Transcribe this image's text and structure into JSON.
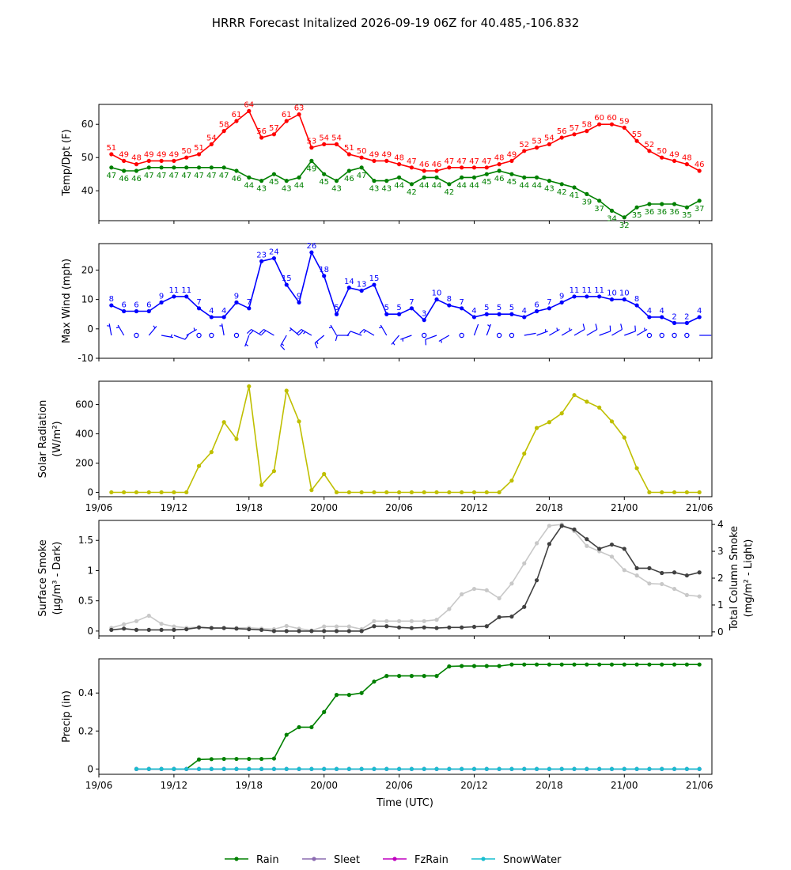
{
  "title": "HRRR Forecast Initalized 2026-09-19 06Z for 40.485,-106.832",
  "colors": {
    "temp": "#ff0000",
    "dewpoint": "#008000",
    "wind": "#0000ff",
    "solar": "#bfbf00",
    "smoke_surface": "#404040",
    "smoke_column": "#c8c8c8",
    "rain": "#008000",
    "sleet": "#8c6bb1",
    "fzrain": "#c000c0",
    "snowwater": "#17becf"
  },
  "time_axis": {
    "xlabel": "Time (UTC)",
    "ticks": [
      "19/06",
      "19/12",
      "19/18",
      "20/00",
      "20/06",
      "20/12",
      "20/18",
      "21/00",
      "21/06"
    ]
  },
  "legend": {
    "placement": "bottom-center",
    "items": [
      {
        "label": "Rain",
        "color_key": "rain"
      },
      {
        "label": "Sleet",
        "color_key": "sleet"
      },
      {
        "label": "FzRain",
        "color_key": "fzrain"
      },
      {
        "label": "SnowWater",
        "color_key": "snowwater"
      }
    ]
  },
  "chart_data": [
    {
      "type": "line",
      "ylabel": "Temp/Dpt (F)",
      "ylim": [
        31,
        66
      ],
      "yticks": [
        40,
        50,
        60
      ],
      "x_start_hour": 1,
      "series": [
        {
          "color_key": "temp",
          "label_pos": "above",
          "values": [
            51,
            49,
            48,
            49,
            49,
            49,
            50,
            51,
            54,
            58,
            61,
            64,
            56,
            57,
            61,
            63,
            53,
            54,
            54,
            51,
            50,
            49,
            49,
            48,
            47,
            46,
            46,
            47,
            47,
            47,
            47,
            48,
            49,
            52,
            53,
            54,
            56,
            57,
            58,
            60,
            60,
            59,
            55,
            52,
            50,
            49,
            48,
            46
          ]
        },
        {
          "color_key": "dewpoint",
          "label_pos": "below",
          "values": [
            47,
            46,
            46,
            47,
            47,
            47,
            47,
            47,
            47,
            47,
            46,
            44,
            43,
            45,
            43,
            44,
            49,
            45,
            43,
            46,
            47,
            43,
            43,
            44,
            42,
            44,
            44,
            42,
            44,
            44,
            45,
            46,
            45,
            44,
            44,
            43,
            42,
            41,
            39,
            37,
            34,
            32,
            35,
            36,
            36,
            36,
            35,
            37
          ]
        }
      ]
    },
    {
      "type": "line",
      "ylabel": "Max Wind (mph)",
      "ylim": [
        -10,
        29
      ],
      "yticks": [
        -10,
        0,
        10,
        20
      ],
      "x_start_hour": 1,
      "series": [
        {
          "color_key": "wind",
          "label_pos": "above",
          "values": [
            8,
            6,
            6,
            6,
            9,
            11,
            11,
            7,
            4,
            4,
            9,
            7,
            23,
            24,
            15,
            9,
            26,
            18,
            5,
            14,
            13,
            15,
            5,
            5,
            7,
            3,
            10,
            8,
            7,
            4,
            5,
            5,
            5,
            4,
            6,
            7,
            9,
            11,
            11,
            11,
            10,
            10,
            8,
            4,
            4,
            2,
            2,
            4
          ]
        }
      ],
      "wind_barbs": [
        {
          "dir": 350,
          "speed": 8
        },
        {
          "dir": 330,
          "speed": 6
        },
        {
          "calm": true
        },
        {
          "dir": 40,
          "speed": 6
        },
        {
          "dir": 100,
          "speed": 9
        },
        {
          "dir": 110,
          "speed": 11
        },
        {
          "dir": 60,
          "speed": 7
        },
        {
          "calm": true
        },
        {
          "calm": true
        },
        {
          "dir": 350,
          "speed": 9
        },
        {
          "calm": true
        },
        {
          "dir": 200,
          "speed": 7
        },
        {
          "dir": 300,
          "speed": 23
        },
        {
          "dir": 300,
          "speed": 24
        },
        {
          "dir": 210,
          "speed": 15
        },
        {
          "dir": 310,
          "speed": 9
        },
        {
          "dir": 300,
          "speed": 26
        },
        {
          "dir": 230,
          "speed": 18
        },
        {
          "dir": 330,
          "speed": 5
        },
        {
          "dir": 270,
          "speed": 14
        },
        {
          "dir": 290,
          "speed": 13
        },
        {
          "dir": 300,
          "speed": 15
        },
        {
          "dir": 330,
          "speed": 5
        },
        {
          "dir": 220,
          "speed": 5
        },
        {
          "dir": 250,
          "speed": 7
        },
        {
          "calm": true
        },
        {
          "dir": 250,
          "speed": 10
        },
        {
          "dir": 240,
          "speed": 8
        },
        {
          "calm": true
        },
        {
          "dir": 20,
          "speed": 4
        },
        {
          "dir": 20,
          "speed": 5
        },
        {
          "calm": true
        },
        {
          "calm": true
        },
        {
          "dir": 80,
          "speed": 4
        },
        {
          "dir": 70,
          "speed": 6
        },
        {
          "dir": 60,
          "speed": 7
        },
        {
          "dir": 60,
          "speed": 9
        },
        {
          "dir": 60,
          "speed": 11
        },
        {
          "dir": 60,
          "speed": 11
        },
        {
          "dir": 70,
          "speed": 11
        },
        {
          "dir": 60,
          "speed": 10
        },
        {
          "dir": 70,
          "speed": 10
        },
        {
          "dir": 60,
          "speed": 8
        },
        {
          "calm": true
        },
        {
          "calm": true
        },
        {
          "calm": true
        },
        {
          "calm": true
        },
        {
          "dir": 90,
          "speed": 4
        }
      ]
    },
    {
      "type": "line",
      "ylabel_lines": [
        "Solar Radiation",
        "(W/m²)"
      ],
      "ylim": [
        -30,
        760
      ],
      "yticks": [
        0,
        200,
        400,
        600
      ],
      "x_start_hour": 1,
      "series": [
        {
          "color_key": "solar",
          "values": [
            0,
            0,
            0,
            0,
            0,
            0,
            0,
            180,
            275,
            480,
            365,
            725,
            50,
            145,
            695,
            485,
            15,
            125,
            0,
            0,
            0,
            0,
            0,
            0,
            0,
            0,
            0,
            0,
            0,
            0,
            0,
            0,
            80,
            265,
            440,
            480,
            540,
            665,
            620,
            580,
            485,
            375,
            165,
            0,
            0,
            0,
            0,
            0
          ]
        }
      ]
    },
    {
      "type": "line",
      "ylabel_lines": [
        "Surface Smoke",
        "(μg/m³ - Dark)"
      ],
      "ylabel_right_lines": [
        "Total Column Smoke",
        "(mg/m² - Light)"
      ],
      "ylim": [
        -0.08,
        1.83
      ],
      "yticks": [
        0.0,
        0.5,
        1.0,
        1.5
      ],
      "ylim_right": [
        -0.15,
        4.15
      ],
      "yticks_right": [
        0,
        1,
        2,
        3,
        4
      ],
      "x_start_hour": 1,
      "series": [
        {
          "color_key": "smoke_column",
          "axis": "right",
          "values": [
            0.15,
            0.28,
            0.4,
            0.6,
            0.3,
            0.2,
            0.15,
            0.18,
            0.15,
            0.14,
            0.15,
            0.15,
            0.12,
            0.1,
            0.22,
            0.12,
            0.05,
            0.2,
            0.2,
            0.2,
            0.1,
            0.4,
            0.4,
            0.4,
            0.4,
            0.4,
            0.45,
            0.85,
            1.4,
            1.6,
            1.55,
            1.25,
            1.8,
            2.55,
            3.3,
            3.95,
            4.0,
            3.75,
            3.2,
            3.0,
            2.8,
            2.3,
            2.1,
            1.8,
            1.78,
            1.6,
            1.37,
            1.32
          ]
        },
        {
          "color_key": "smoke_surface",
          "axis": "left",
          "values": [
            0.02,
            0.04,
            0.02,
            0.02,
            0.02,
            0.02,
            0.03,
            0.06,
            0.05,
            0.05,
            0.04,
            0.03,
            0.02,
            0.0,
            0.0,
            0.0,
            0.0,
            0.0,
            0.0,
            0.0,
            0.0,
            0.08,
            0.08,
            0.06,
            0.05,
            0.06,
            0.05,
            0.06,
            0.06,
            0.07,
            0.08,
            0.23,
            0.24,
            0.4,
            0.84,
            1.44,
            1.74,
            1.68,
            1.52,
            1.36,
            1.43,
            1.36,
            1.04,
            1.04,
            0.96,
            0.97,
            0.92,
            0.97
          ]
        }
      ]
    },
    {
      "type": "line",
      "ylabel": "Precip (in)",
      "ylim": [
        -0.028,
        0.58
      ],
      "yticks": [
        0.0,
        0.2,
        0.4
      ],
      "x_start_hour": 1,
      "show_xlabel": true,
      "series": [
        {
          "color_key": "rain",
          "label": "Rain",
          "values": [
            null,
            null,
            0,
            0,
            0,
            0,
            0,
            0.05,
            0.052,
            0.053,
            0.053,
            0.053,
            0.053,
            0.055,
            0.18,
            0.22,
            0.22,
            0.3,
            0.39,
            0.39,
            0.4,
            0.46,
            0.49,
            0.49,
            0.49,
            0.49,
            0.49,
            0.54,
            0.542,
            0.542,
            0.542,
            0.542,
            0.55,
            0.55,
            0.55,
            0.55,
            0.55,
            0.55,
            0.55,
            0.55,
            0.55,
            0.55,
            0.55,
            0.55,
            0.55,
            0.55,
            0.55,
            0.55
          ]
        },
        {
          "color_key": "sleet",
          "label": "Sleet",
          "const": 0,
          "start_index": 2
        },
        {
          "color_key": "fzrain",
          "label": "FzRain",
          "const": 0,
          "start_index": 2
        },
        {
          "color_key": "snowwater",
          "label": "SnowWater",
          "const": 0,
          "start_index": 2
        }
      ]
    }
  ]
}
